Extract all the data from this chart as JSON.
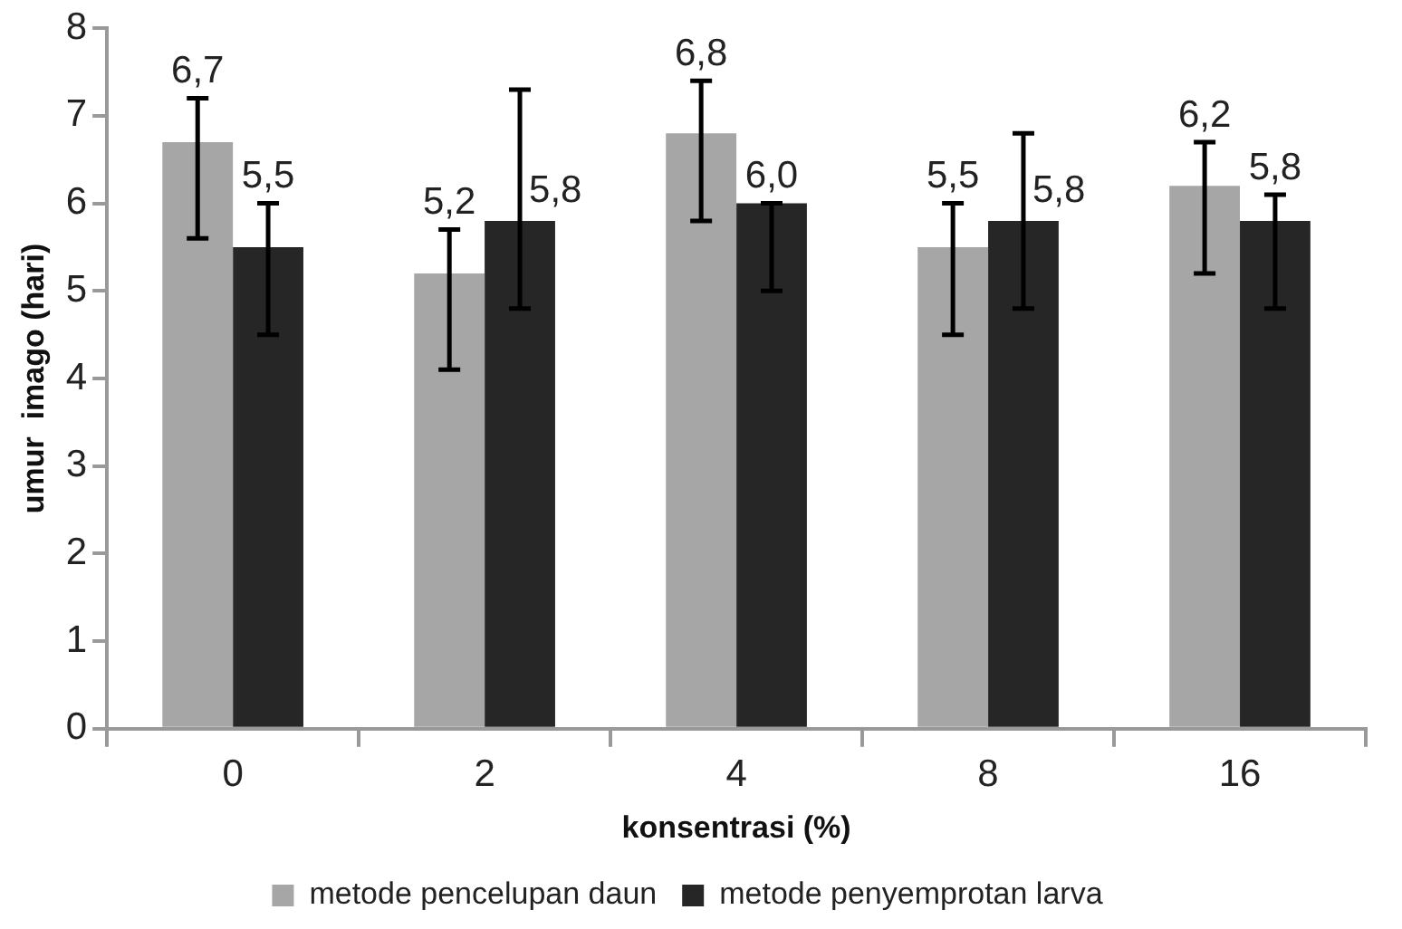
{
  "chart_data": {
    "type": "bar",
    "xlabel": "konsentrasi (%)",
    "ylabel": "umur  imago (hari)",
    "categories": [
      "0",
      "2",
      "4",
      "8",
      "16"
    ],
    "series": [
      {
        "name": "metode pencelupan daun",
        "color": "#a6a6a6",
        "values": [
          6.7,
          5.2,
          6.8,
          5.5,
          6.2
        ],
        "errors": [
          [
            5.6,
            7.2
          ],
          [
            4.1,
            5.7
          ],
          [
            5.8,
            7.4
          ],
          [
            4.5,
            6.0
          ],
          [
            5.2,
            6.7
          ]
        ],
        "value_labels": [
          "6,7",
          "5,2",
          "6,8",
          "5,5",
          "6,2"
        ]
      },
      {
        "name": "metode penyemprotan larva",
        "color": "#262626",
        "values": [
          5.5,
          5.8,
          6.0,
          5.8,
          5.8
        ],
        "errors": [
          [
            4.5,
            6.0
          ],
          [
            4.8,
            7.3
          ],
          [
            5.0,
            6.0
          ],
          [
            4.8,
            6.8
          ],
          [
            4.8,
            6.1
          ]
        ],
        "value_labels": [
          "5,5",
          "5,8",
          "6,0",
          "5,8",
          "5,8"
        ]
      }
    ],
    "ylim": [
      0,
      8
    ],
    "yticks": [
      0,
      1,
      2,
      3,
      4,
      5,
      6,
      7,
      8
    ],
    "grid": false,
    "legend": "bottom"
  }
}
